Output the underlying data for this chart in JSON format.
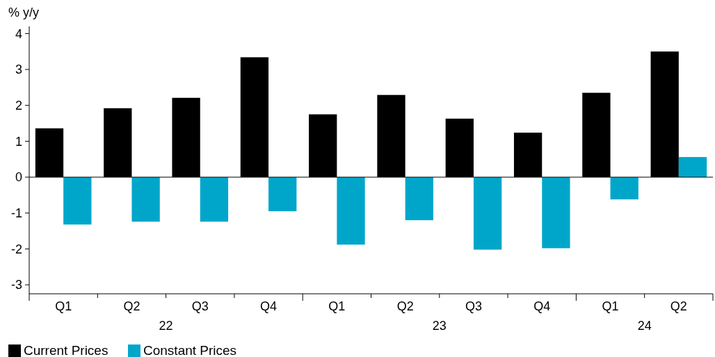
{
  "chart_data": {
    "type": "bar",
    "ylabel": "% y/y",
    "categories": [
      "Q1",
      "Q2",
      "Q3",
      "Q4",
      "Q1",
      "Q2",
      "Q3",
      "Q4",
      "Q1",
      "Q2"
    ],
    "series": [
      {
        "name": "Current Prices",
        "color": "#000000",
        "values": [
          1.36,
          1.92,
          2.21,
          3.34,
          1.75,
          2.29,
          1.63,
          1.24,
          2.35,
          3.5
        ]
      },
      {
        "name": "Constant Prices",
        "color": "#00a6ca",
        "values": [
          -1.32,
          -1.24,
          -1.24,
          -0.95,
          -1.88,
          -1.2,
          -2.02,
          -1.98,
          -0.62,
          0.56
        ]
      }
    ],
    "annotations": [
      "22",
      "23",
      "24"
    ],
    "ylim": [
      -3.25,
      4.2
    ],
    "yticks": [
      -3,
      -2,
      -1,
      0,
      1,
      2,
      3,
      4
    ],
    "legend": "bottom left"
  }
}
